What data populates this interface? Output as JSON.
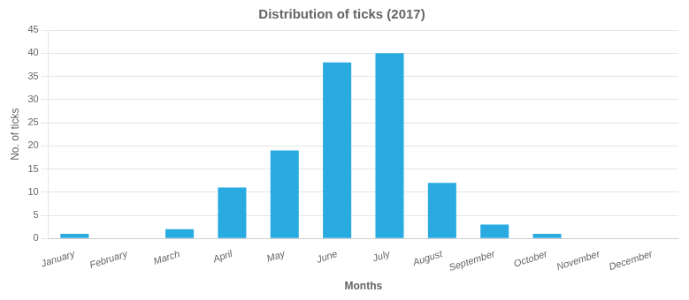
{
  "chart_data": {
    "type": "bar",
    "title": "Distribution of ticks (2017)",
    "xlabel": "Months",
    "ylabel": "No. of ticks",
    "categories": [
      "January",
      "February",
      "March",
      "April",
      "May",
      "June",
      "July",
      "August",
      "September",
      "October",
      "November",
      "December"
    ],
    "values": [
      1,
      0,
      2,
      11,
      19,
      38,
      40,
      12,
      3,
      1,
      0,
      0
    ],
    "color": "#29ABE2",
    "ylim": [
      0,
      45
    ],
    "yticks": [
      0,
      5,
      10,
      15,
      20,
      25,
      30,
      35,
      40,
      45
    ],
    "grid": true
  }
}
